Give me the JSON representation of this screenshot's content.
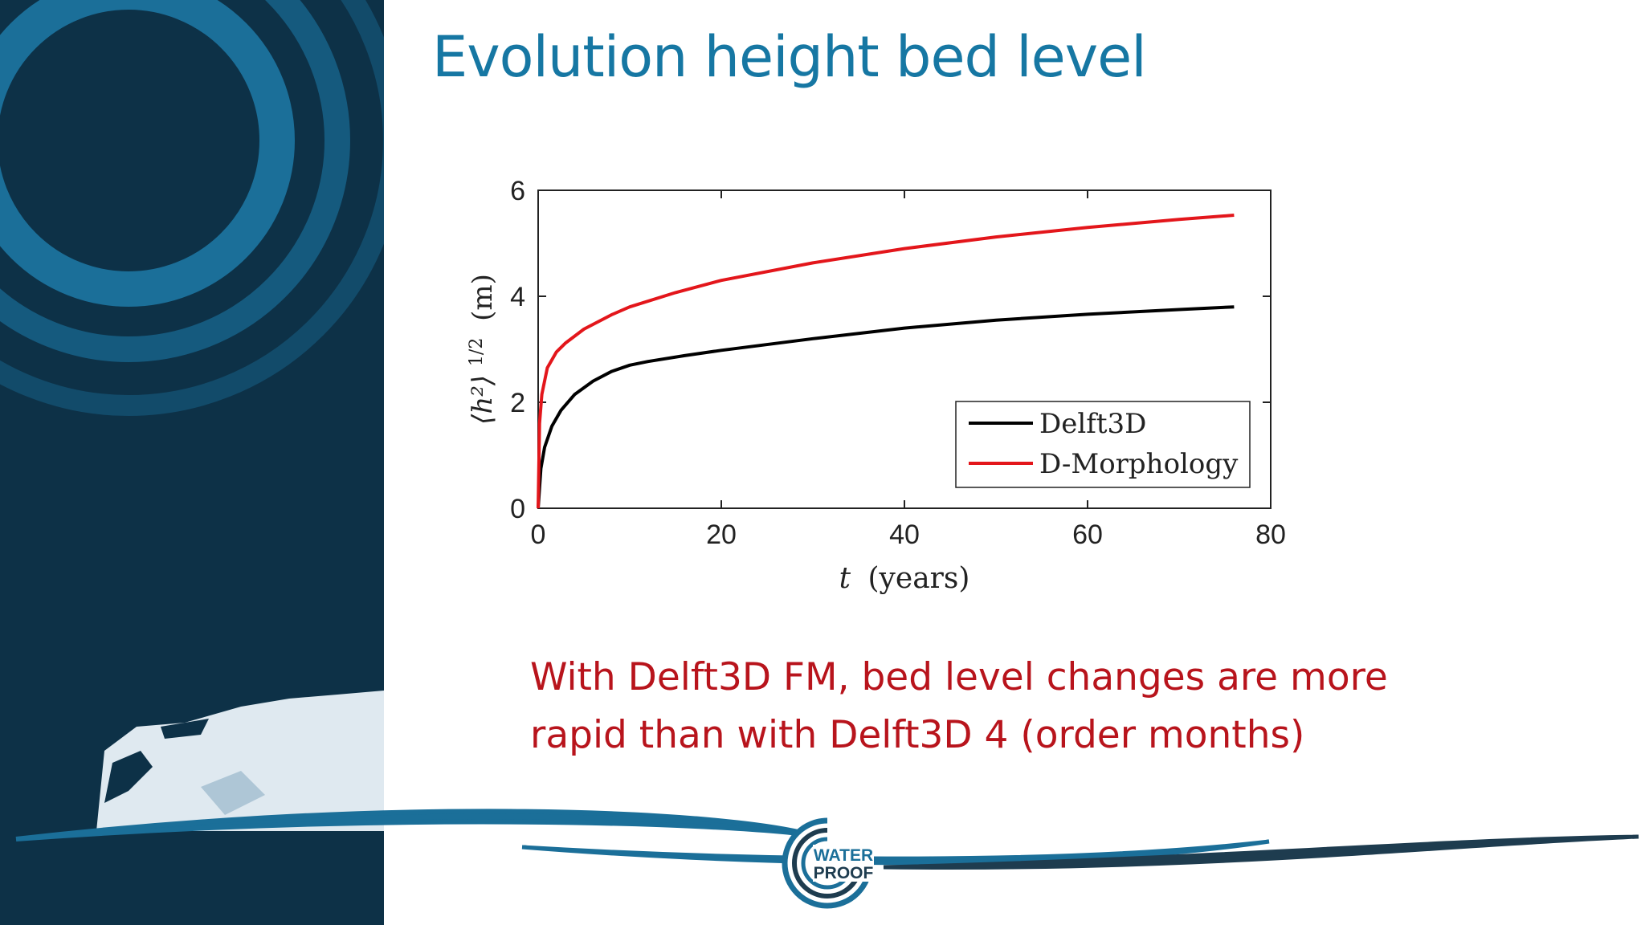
{
  "slide": {
    "title": "Evolution height bed level",
    "caption_lines": [
      "With Delft3D FM, bed level changes are more",
      "rapid than with Delft3D 4 (order months)"
    ],
    "logo_lines": [
      "WATER",
      "PROOF"
    ]
  },
  "colors": {
    "sidebar": "#0d3147",
    "title": "#1677a3",
    "caption": "#b8141c",
    "delft3d": "#000000",
    "dmorphology": "#e3161b"
  },
  "chart_data": {
    "type": "line",
    "xlabel_symbol": "t",
    "xlabel_unit": "(years)",
    "ylabel_core": "⟨h²⟩",
    "ylabel_exp": "1/2",
    "ylabel_unit": "(m)",
    "xlim": [
      0,
      80
    ],
    "ylim": [
      0,
      6
    ],
    "xticks": [
      0,
      20,
      40,
      60,
      80
    ],
    "yticks": [
      0,
      2,
      4,
      6
    ],
    "grid": false,
    "legend_position": "bottom-right",
    "series": [
      {
        "name": "Delft3D",
        "color": "#000000",
        "x": [
          0,
          0.3,
          0.7,
          1.5,
          2.5,
          4,
          6,
          8,
          10,
          12,
          16,
          20,
          30,
          40,
          50,
          60,
          70,
          76
        ],
        "y": [
          0,
          0.75,
          1.15,
          1.55,
          1.85,
          2.15,
          2.4,
          2.58,
          2.7,
          2.77,
          2.88,
          2.98,
          3.2,
          3.4,
          3.55,
          3.66,
          3.75,
          3.8
        ]
      },
      {
        "name": "D-Morphology",
        "color": "#e3161b",
        "x": [
          0,
          0.15,
          0.4,
          1,
          2,
          3,
          5,
          8,
          10,
          15,
          20,
          30,
          40,
          50,
          60,
          70,
          76
        ],
        "y": [
          0,
          1.6,
          2.15,
          2.65,
          2.95,
          3.12,
          3.38,
          3.65,
          3.8,
          4.07,
          4.3,
          4.63,
          4.9,
          5.12,
          5.3,
          5.45,
          5.53
        ]
      }
    ]
  }
}
